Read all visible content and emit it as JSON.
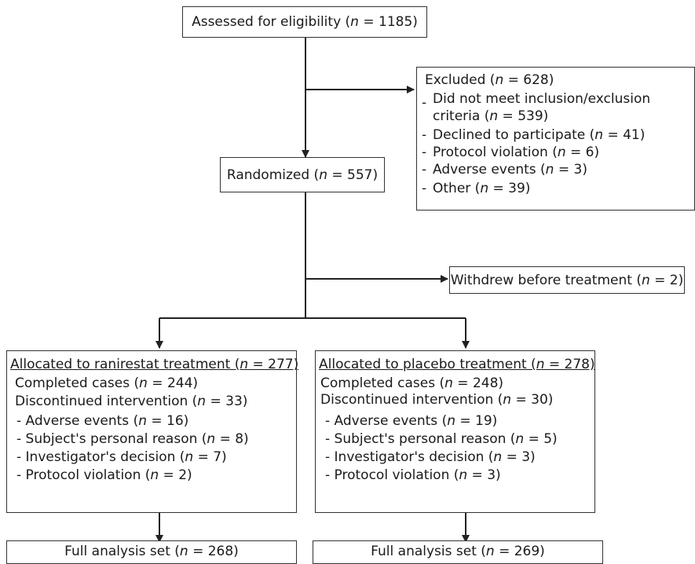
{
  "assessed": {
    "before": "Assessed for eligibility (",
    "n": "n",
    "after": " = 1185)"
  },
  "excluded": {
    "title": {
      "before": "Excluded (",
      "n": "n",
      "after": " = 628)"
    },
    "items": [
      {
        "prefix": "-",
        "lines": [
          {
            "before": "Did not meet inclusion/exclusion",
            "n": "",
            "after": ""
          },
          {
            "before": "criteria (",
            "n": "n",
            "after": " = 539)"
          }
        ]
      },
      {
        "prefix": "-",
        "lines": [
          {
            "before": "Declined to participate (",
            "n": "n",
            "after": " = 41)"
          }
        ]
      },
      {
        "prefix": "-",
        "lines": [
          {
            "before": "Protocol violation (",
            "n": "n",
            "after": " = 6)"
          }
        ]
      },
      {
        "prefix": "-",
        "lines": [
          {
            "before": "Adverse events (",
            "n": "n",
            "after": " = 3)"
          }
        ]
      },
      {
        "prefix": "-",
        "lines": [
          {
            "before": "Other (",
            "n": "n",
            "after": " = 39)"
          }
        ]
      }
    ]
  },
  "randomized": {
    "before": "Randomized (",
    "n": "n",
    "after": " = 557)"
  },
  "withdrew": {
    "before": "Withdrew before treatment (",
    "n": "n",
    "after": " = 2)"
  },
  "arms": [
    {
      "title": {
        "before": "Allocated to ranirestat treatment (",
        "n": "n",
        "after": " = 277)"
      },
      "completed": {
        "before": "Completed cases (",
        "n": "n",
        "after": " = 244)"
      },
      "discontinued": {
        "before": "Discontinued intervention (",
        "n": "n",
        "after": " = 33)"
      },
      "reasons": [
        {
          "before": "- Adverse events (",
          "n": "n",
          "after": " = 16)"
        },
        {
          "before": "- Subject's personal reason (",
          "n": "n",
          "after": " = 8)"
        },
        {
          "before": "- Investigator's decision (",
          "n": "n",
          "after": " = 7)"
        },
        {
          "before": "- Protocol violation (",
          "n": "n",
          "after": " = 2)"
        }
      ],
      "analysis": {
        "before": "Full analysis set (",
        "n": "n",
        "after": " = 268)"
      }
    },
    {
      "title": {
        "before": "Allocated to placebo treatment (",
        "n": "n",
        "after": " = 278)"
      },
      "completed": {
        "before": "Completed cases (",
        "n": "n",
        "after": " = 248)"
      },
      "discontinued": {
        "before": "Discontinued intervention (",
        "n": "n",
        "after": " = 30)"
      },
      "reasons": [
        {
          "before": "- Adverse events (",
          "n": "n",
          "after": " = 19)"
        },
        {
          "before": "- Subject's personal reason (",
          "n": "n",
          "after": " = 5)"
        },
        {
          "before": "- Investigator's decision (",
          "n": "n",
          "after": " = 3)"
        },
        {
          "before": "- Protocol violation (",
          "n": "n",
          "after": " = 3)"
        }
      ],
      "analysis": {
        "before": "Full analysis set (",
        "n": "n",
        "after": " = 269)"
      }
    }
  ]
}
